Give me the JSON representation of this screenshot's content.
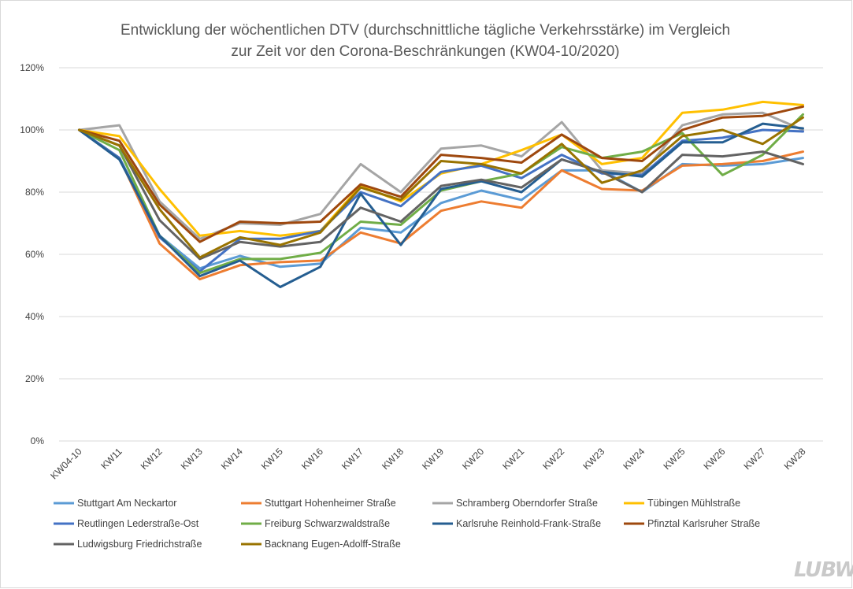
{
  "chart_data": {
    "type": "line",
    "title": [
      "Entwicklung der wöchentlichen DTV (durchschnittliche tägliche Verkehrsstärke) im Vergleich",
      "zur Zeit vor den Corona-Beschränkungen (KW04-10/2020)"
    ],
    "categories": [
      "KW04-10",
      "KW11",
      "KW12",
      "KW13",
      "KW14",
      "KW15",
      "KW16",
      "KW17",
      "KW18",
      "KW19",
      "KW20",
      "KW21",
      "KW22",
      "KW23",
      "KW24",
      "KW25",
      "KW26",
      "KW27",
      "KW28"
    ],
    "y_ticks": [
      "0%",
      "20%",
      "40%",
      "60%",
      "80%",
      "100%",
      "120%"
    ],
    "ylim": [
      0,
      120
    ],
    "grid": true,
    "legend_position": "bottom",
    "series": [
      {
        "name": "Stuttgart Am Neckartor",
        "color": "#5B9BD5",
        "values": [
          100,
          91,
          66,
          55.5,
          59.5,
          56,
          57,
          68.5,
          67,
          76.5,
          80.5,
          77.5,
          87,
          87,
          80,
          89,
          88.5,
          89,
          91
        ]
      },
      {
        "name": "Stuttgart Hohenheimer Straße",
        "color": "#ED7D31",
        "values": [
          100,
          91,
          63.5,
          52,
          56.5,
          57.5,
          58,
          67,
          63.5,
          74,
          77,
          75,
          87,
          81,
          80.5,
          88.5,
          89,
          90,
          93
        ]
      },
      {
        "name": "Schramberg Oberndorfer Straße",
        "color": "#A5A5A5",
        "values": [
          100,
          101.5,
          77,
          65,
          70,
          69.5,
          73,
          89,
          80,
          94,
          95,
          91.5,
          102.5,
          87,
          86,
          101.5,
          105,
          105.5,
          100
        ]
      },
      {
        "name": "Tübingen Mühlstraße",
        "color": "#FFC000",
        "values": [
          100,
          98,
          81,
          66,
          67.5,
          66,
          67.5,
          82,
          77,
          86,
          89,
          93.5,
          98.5,
          89,
          91,
          105.5,
          106.5,
          109,
          108
        ]
      },
      {
        "name": "Reutlingen Lederstraße-Ost",
        "color": "#4472C4",
        "values": [
          100,
          91,
          65.5,
          54.5,
          65,
          65,
          67.5,
          80,
          75.5,
          86.5,
          88.5,
          84.5,
          92,
          86,
          85.5,
          96.5,
          97.5,
          100,
          99.5
        ]
      },
      {
        "name": "Freiburg Schwarzwaldstraße",
        "color": "#70AD47",
        "values": [
          100,
          93.5,
          66,
          54,
          58.5,
          58.5,
          60.5,
          70.5,
          69.5,
          80.5,
          83.5,
          86,
          94.5,
          91,
          93,
          99,
          85.5,
          92,
          105
        ]
      },
      {
        "name": "Karlsruhe Reinhold-Frank-Straße",
        "color": "#255E91",
        "values": [
          100,
          90.5,
          66,
          53,
          58,
          49.5,
          56,
          79.5,
          63,
          81,
          83.5,
          80,
          90.5,
          86.5,
          85,
          96,
          96,
          102,
          100.5
        ]
      },
      {
        "name": "Pfinztal Karlsruher Straße",
        "color": "#9E480E",
        "values": [
          100,
          96.5,
          76,
          64,
          70.5,
          70,
          70.5,
          82.5,
          78.5,
          92,
          91,
          89.5,
          98.5,
          91,
          90,
          100,
          104,
          104.5,
          107.5
        ]
      },
      {
        "name": "Ludwigsburg Friedrichstraße",
        "color": "#636363",
        "values": [
          100,
          95,
          71,
          58.5,
          64,
          62.5,
          64,
          75,
          70.5,
          82,
          84,
          81.5,
          90.5,
          86.5,
          80,
          92,
          91.5,
          93,
          89
        ]
      },
      {
        "name": "Backnang Eugen-Adolff-Straße",
        "color": "#997300",
        "values": [
          100,
          95,
          74.5,
          59,
          65.5,
          63,
          67,
          81.5,
          77.5,
          90,
          89,
          86,
          95.5,
          83,
          87,
          98,
          100,
          95.5,
          104
        ]
      }
    ]
  },
  "logo": {
    "text": "LUBW"
  }
}
